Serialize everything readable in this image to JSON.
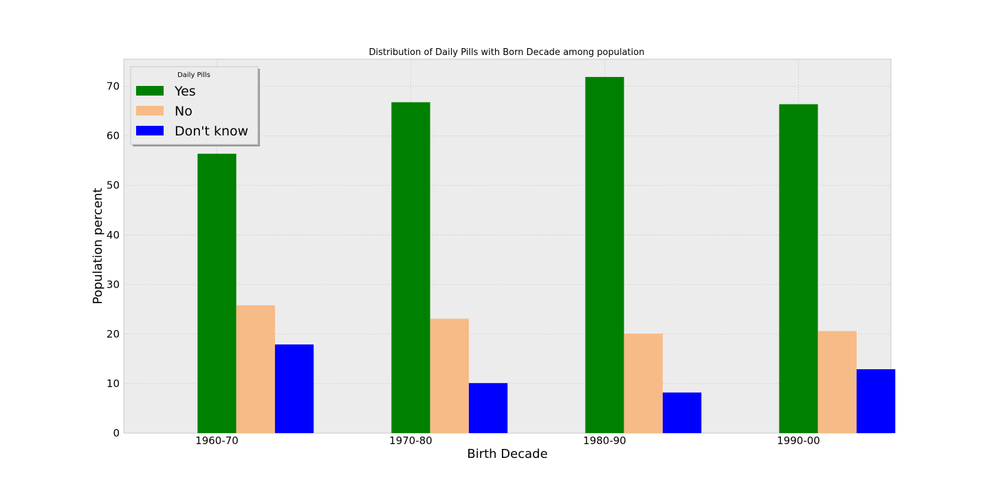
{
  "chart_data": {
    "type": "bar",
    "title": "Distribution of Daily Pills with Born Decade among population",
    "xlabel": "Birth Decade",
    "ylabel": "Population percent",
    "categories": [
      "1960-70",
      "1970-80",
      "1980-90",
      "1990-00"
    ],
    "series": [
      {
        "name": "Yes",
        "color": "#008000",
        "values": [
          56.4,
          66.8,
          71.9,
          66.4
        ]
      },
      {
        "name": "No",
        "color": "#f7bb87",
        "values": [
          25.8,
          23.1,
          20.1,
          20.6
        ]
      },
      {
        "name": "Don't know",
        "color": "#0000ff",
        "values": [
          17.9,
          10.1,
          8.2,
          12.9
        ]
      }
    ],
    "ylim": [
      0,
      75.5
    ],
    "yticks": [
      0,
      10,
      20,
      30,
      40,
      50,
      60,
      70
    ],
    "grid": true,
    "legend": {
      "title": "Daily Pills",
      "position": "top-left"
    },
    "colors": {
      "plot_background": "#ececec",
      "grid": "#cccccc",
      "axes_edge": "#c8c8c8"
    }
  }
}
